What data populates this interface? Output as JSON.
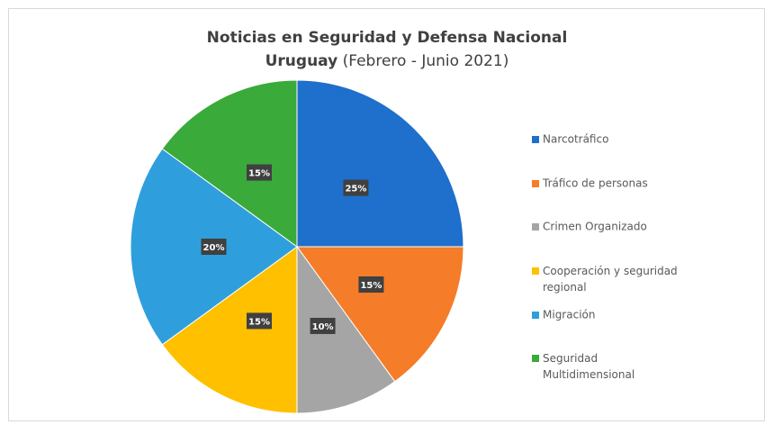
{
  "chart_data": {
    "type": "pie",
    "title": "Noticias en Seguridad y Defensa Nacional",
    "subtitle": [
      "Uruguay",
      "(Febrero - Junio 2021)"
    ],
    "categories": [
      "Narcotráfico",
      "Tráfico de personas",
      "Crimen Organizado",
      "Cooperación y seguridad regional",
      "Migración",
      "Seguridad Multidimensional"
    ],
    "values": [
      25,
      15,
      10,
      15,
      20,
      15
    ],
    "value_labels": [
      "25%",
      "15%",
      "10%",
      "15%",
      "20%",
      "15%"
    ],
    "colors": [
      "#1f6fcc",
      "#f57c28",
      "#a5a5a5",
      "#ffc000",
      "#2e9fdc",
      "#3aaa3a"
    ],
    "legend": "right"
  }
}
